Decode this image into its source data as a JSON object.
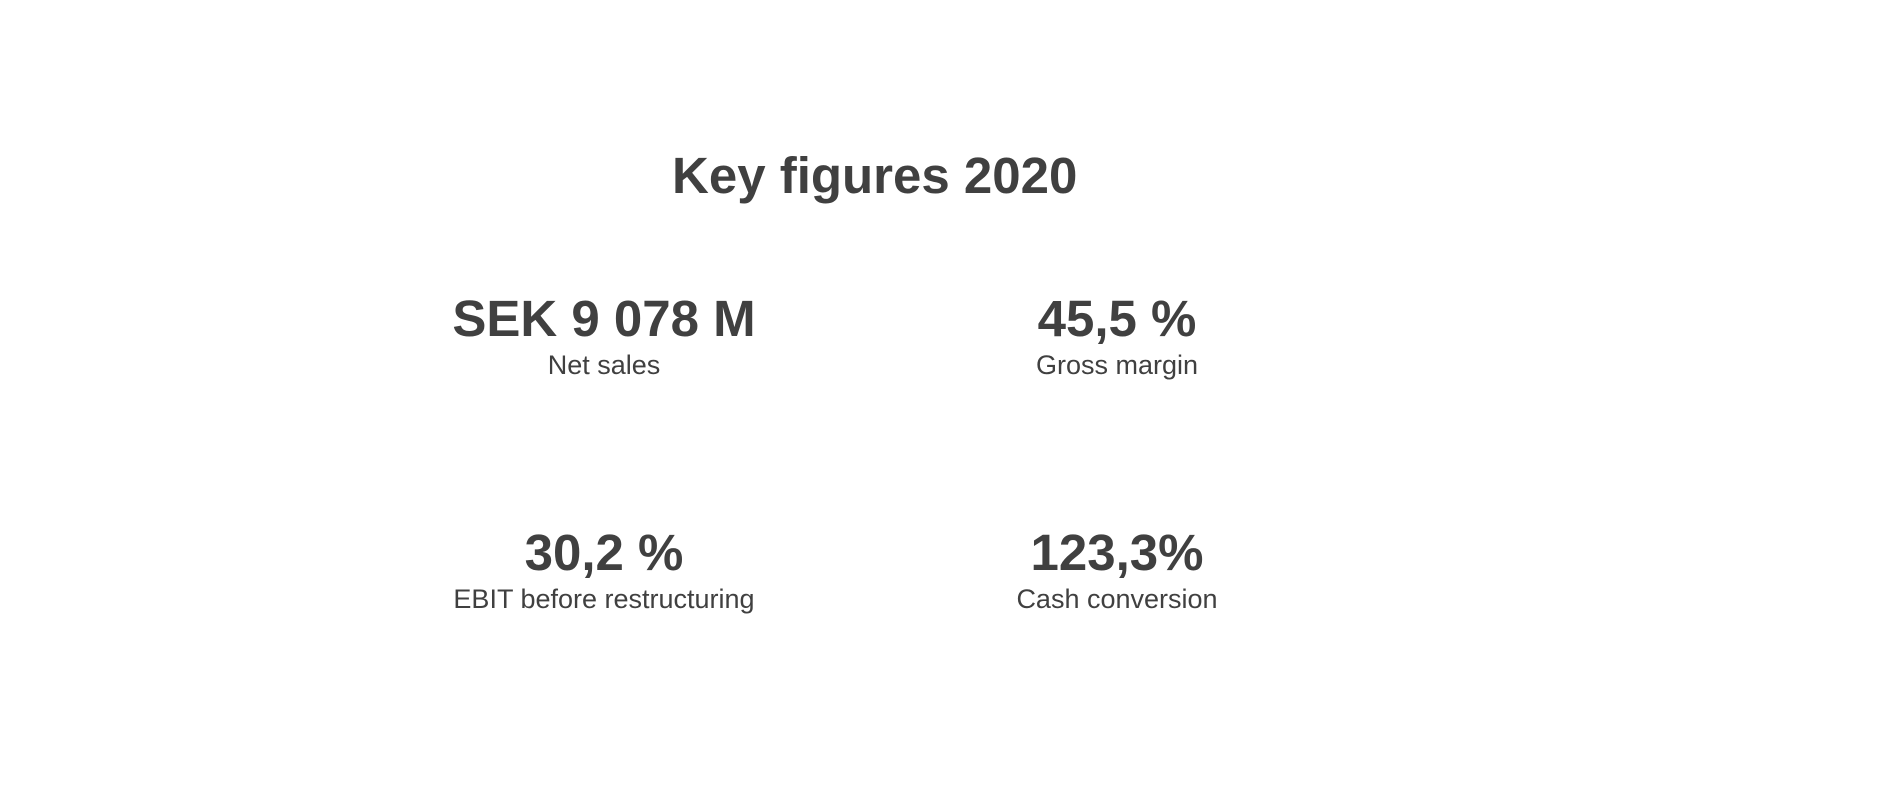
{
  "title": "Key figures 2020",
  "kpis": [
    {
      "value": "SEK 9 078 M",
      "label": "Net sales"
    },
    {
      "value": "45,5 %",
      "label": "Gross margin"
    },
    {
      "value": "30,2 %",
      "label": "EBIT before restructuring"
    },
    {
      "value": "123,3%",
      "label": "Cash conversion"
    }
  ]
}
